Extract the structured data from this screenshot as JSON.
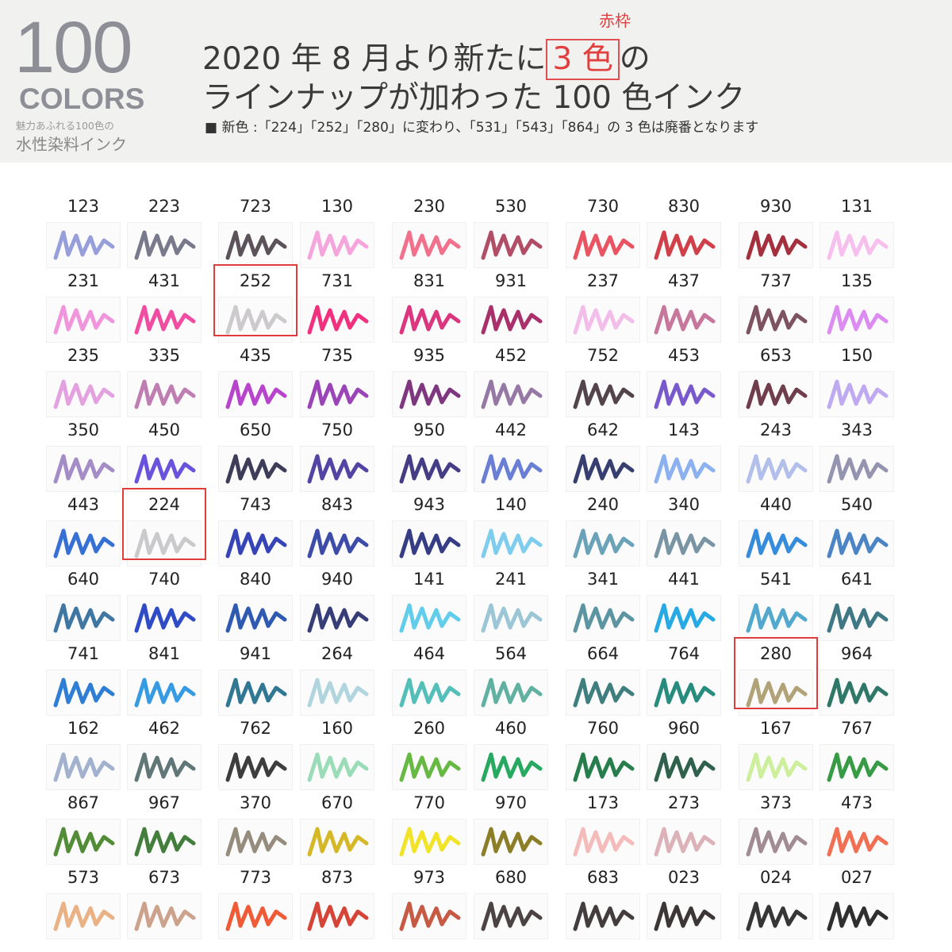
{
  "header": {
    "big_number": "100",
    "colors_label": "COLORS",
    "tagline": "魅力あふれる100色の",
    "subtitle": "水性染料インク",
    "title_line1_pre": "2020 年 8 月より新たに",
    "title_highlight": "3 色",
    "title_line1_post": "の",
    "highlight_note": "赤枠",
    "title_line2": "ラインナップが加わった 100 色インク",
    "note": "■ 新色 :「224」「252」「280」に変わり、「531」「543」「864」の 3 色は廃番となります"
  },
  "accent_color": "#e04040",
  "grid": [
    [
      [
        "123",
        "#8c95d6"
      ],
      [
        "223",
        "#6a6a80"
      ],
      [
        "723",
        "#4a4048"
      ],
      [
        "130",
        "#f59bd8"
      ],
      [
        "230",
        "#f0607e"
      ],
      [
        "530",
        "#a83a55"
      ],
      [
        "730",
        "#e84050"
      ],
      [
        "830",
        "#cc2a35"
      ],
      [
        "930",
        "#9a1a28"
      ],
      [
        "131",
        "#f6b8ec"
      ]
    ],
    [
      [
        "231",
        "#ee8ad8"
      ],
      [
        "431",
        "#ee3a98"
      ],
      [
        "252",
        "#c8c4c8"
      ],
      [
        "731",
        "#f01a70"
      ],
      [
        "831",
        "#d82070"
      ],
      [
        "931",
        "#a01a5a"
      ],
      [
        "237",
        "#f2b6e8"
      ],
      [
        "437",
        "#c06890"
      ],
      [
        "737",
        "#704050"
      ],
      [
        "135",
        "#d880f0"
      ]
    ],
    [
      [
        "235",
        "#e098dc"
      ],
      [
        "335",
        "#b870a8"
      ],
      [
        "435",
        "#b030c8"
      ],
      [
        "735",
        "#9030b0"
      ],
      [
        "935",
        "#702070"
      ],
      [
        "452",
        "#8a6a9a"
      ],
      [
        "752",
        "#403038"
      ],
      [
        "453",
        "#6a48c8"
      ],
      [
        "653",
        "#602838"
      ],
      [
        "150",
        "#b8a0f0"
      ]
    ],
    [
      [
        "350",
        "#9a80c0"
      ],
      [
        "450",
        "#5a40d8"
      ],
      [
        "650",
        "#282848"
      ],
      [
        "750",
        "#40309a"
      ],
      [
        "950",
        "#302878"
      ],
      [
        "442",
        "#5a70d0"
      ],
      [
        "642",
        "#202a60"
      ],
      [
        "143",
        "#80a8f0"
      ],
      [
        "243",
        "#a8b8e8"
      ],
      [
        "343",
        "#8888a8"
      ]
    ],
    [
      [
        "443",
        "#2060d0"
      ],
      [
        "224",
        "#c4c4c8"
      ],
      [
        "743",
        "#2030b0"
      ],
      [
        "843",
        "#2838a0"
      ],
      [
        "943",
        "#202878"
      ],
      [
        "140",
        "#70c8ec"
      ],
      [
        "240",
        "#5a98b0"
      ],
      [
        "340",
        "#6a8898"
      ],
      [
        "440",
        "#2080d8"
      ],
      [
        "540",
        "#3878c0"
      ]
    ],
    [
      [
        "640",
        "#2a6898"
      ],
      [
        "740",
        "#1838c0"
      ],
      [
        "840",
        "#1848a8"
      ],
      [
        "940",
        "#202868"
      ],
      [
        "141",
        "#50c8e8"
      ],
      [
        "241",
        "#90c0d0"
      ],
      [
        "341",
        "#4a8898"
      ],
      [
        "441",
        "#10a0e0"
      ],
      [
        "541",
        "#40a0c8"
      ],
      [
        "641",
        "#2a6878"
      ]
    ],
    [
      [
        "741",
        "#1870d0"
      ],
      [
        "841",
        "#2090e0"
      ],
      [
        "941",
        "#1a6888"
      ],
      [
        "264",
        "#a8d0dc"
      ],
      [
        "464",
        "#40b8b0"
      ],
      [
        "564",
        "#50a898"
      ],
      [
        "664",
        "#2a7070"
      ],
      [
        "764",
        "#108070"
      ],
      [
        "280",
        "#a89868"
      ],
      [
        "964",
        "#186858"
      ]
    ],
    [
      [
        "162",
        "#98a8c8"
      ],
      [
        "462",
        "#506868"
      ],
      [
        "762",
        "#282828"
      ],
      [
        "160",
        "#90d8b0"
      ],
      [
        "260",
        "#58b030"
      ],
      [
        "460",
        "#10a050"
      ],
      [
        "760",
        "#107038"
      ],
      [
        "960",
        "#185038"
      ],
      [
        "167",
        "#c8ec90"
      ],
      [
        "767",
        "#209030"
      ]
    ],
    [
      [
        "867",
        "#408020"
      ],
      [
        "967",
        "#307028"
      ],
      [
        "370",
        "#8a8070"
      ],
      [
        "670",
        "#d0b010"
      ],
      [
        "770",
        "#f0e010"
      ],
      [
        "970",
        "#807010"
      ],
      [
        "173",
        "#f4b4b4"
      ],
      [
        "273",
        "#d8a8b0"
      ],
      [
        "373",
        "#988088"
      ],
      [
        "473",
        "#f06040"
      ]
    ],
    [
      [
        "573",
        "#e8a878"
      ],
      [
        "673",
        "#c89880"
      ],
      [
        "773",
        "#f04820"
      ],
      [
        "873",
        "#d03020"
      ],
      [
        "973",
        "#c04830"
      ],
      [
        "680",
        "#383030"
      ],
      [
        "683",
        "#302828"
      ],
      [
        "023",
        "#282020"
      ],
      [
        "024",
        "#202020"
      ],
      [
        "027",
        "#181818"
      ]
    ]
  ]
}
